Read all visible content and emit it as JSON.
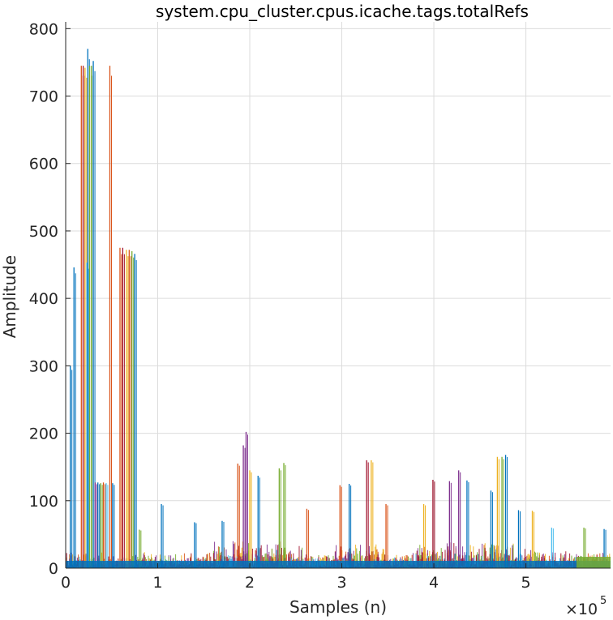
{
  "chart_data": {
    "type": "line",
    "title": "system.cpu_cluster.cpus.icache.tags.totalRefs",
    "xlabel": "Samples (n)",
    "ylabel": "Amplitude",
    "x_exponent_base": "×10",
    "x_exponent_power": "5",
    "xlim": [
      0,
      592000
    ],
    "ylim": [
      0,
      810
    ],
    "x_ticks": [
      0,
      100000,
      200000,
      300000,
      400000,
      500000
    ],
    "x_tick_labels": [
      "0",
      "1",
      "2",
      "3",
      "4",
      "5"
    ],
    "y_ticks": [
      0,
      100,
      200,
      300,
      400,
      500,
      600,
      700,
      800
    ],
    "y_tick_labels": [
      "0",
      "100",
      "200",
      "300",
      "400",
      "500",
      "600",
      "700",
      "800"
    ],
    "grid": true,
    "colors": {
      "blue": "#0072BD",
      "orange": "#D95319",
      "yellow": "#EDB120",
      "purple": "#7E2F8E",
      "green": "#77AC30",
      "cyan": "#4DBEEE",
      "red": "#A2142F"
    },
    "spikes": [
      {
        "x": 5000,
        "y": 300,
        "color": "blue"
      },
      {
        "x": 9000,
        "y": 446,
        "color": "blue"
      },
      {
        "x": 17000,
        "y": 745,
        "color": "orange"
      },
      {
        "x": 19000,
        "y": 745,
        "color": "red"
      },
      {
        "x": 21000,
        "y": 742,
        "color": "yellow"
      },
      {
        "x": 23000,
        "y": 453,
        "color": "cyan"
      },
      {
        "x": 24000,
        "y": 770,
        "color": "blue"
      },
      {
        "x": 26000,
        "y": 745,
        "color": "green"
      },
      {
        "x": 28000,
        "y": 745,
        "color": "green"
      },
      {
        "x": 30000,
        "y": 752,
        "color": "blue"
      },
      {
        "x": 32000,
        "y": 127,
        "color": "purple"
      },
      {
        "x": 35000,
        "y": 127,
        "color": "blue"
      },
      {
        "x": 38000,
        "y": 126,
        "color": "green"
      },
      {
        "x": 41000,
        "y": 127,
        "color": "orange"
      },
      {
        "x": 44000,
        "y": 126,
        "color": "cyan"
      },
      {
        "x": 48000,
        "y": 745,
        "color": "orange"
      },
      {
        "x": 51000,
        "y": 126,
        "color": "blue"
      },
      {
        "x": 59000,
        "y": 475,
        "color": "orange"
      },
      {
        "x": 62000,
        "y": 475,
        "color": "red"
      },
      {
        "x": 66000,
        "y": 472,
        "color": "yellow"
      },
      {
        "x": 69000,
        "y": 472,
        "color": "orange"
      },
      {
        "x": 72000,
        "y": 470,
        "color": "green"
      },
      {
        "x": 75000,
        "y": 466,
        "color": "blue"
      },
      {
        "x": 80000,
        "y": 57,
        "color": "green"
      },
      {
        "x": 104000,
        "y": 95,
        "color": "blue"
      },
      {
        "x": 140000,
        "y": 68,
        "color": "blue"
      },
      {
        "x": 170000,
        "y": 70,
        "color": "blue"
      },
      {
        "x": 187000,
        "y": 155,
        "color": "orange"
      },
      {
        "x": 193000,
        "y": 182,
        "color": "purple"
      },
      {
        "x": 196000,
        "y": 202,
        "color": "purple"
      },
      {
        "x": 200000,
        "y": 145,
        "color": "yellow"
      },
      {
        "x": 209000,
        "y": 137,
        "color": "blue"
      },
      {
        "x": 232000,
        "y": 148,
        "color": "green"
      },
      {
        "x": 237000,
        "y": 156,
        "color": "green"
      },
      {
        "x": 262000,
        "y": 88,
        "color": "orange"
      },
      {
        "x": 298000,
        "y": 123,
        "color": "orange"
      },
      {
        "x": 308000,
        "y": 125,
        "color": "blue"
      },
      {
        "x": 327000,
        "y": 160,
        "color": "red"
      },
      {
        "x": 332000,
        "y": 160,
        "color": "yellow"
      },
      {
        "x": 348000,
        "y": 95,
        "color": "orange"
      },
      {
        "x": 389000,
        "y": 95,
        "color": "yellow"
      },
      {
        "x": 399000,
        "y": 131,
        "color": "red"
      },
      {
        "x": 417000,
        "y": 129,
        "color": "purple"
      },
      {
        "x": 427000,
        "y": 145,
        "color": "purple"
      },
      {
        "x": 436000,
        "y": 130,
        "color": "blue"
      },
      {
        "x": 462000,
        "y": 115,
        "color": "blue"
      },
      {
        "x": 469000,
        "y": 165,
        "color": "yellow"
      },
      {
        "x": 474000,
        "y": 165,
        "color": "green"
      },
      {
        "x": 478000,
        "y": 168,
        "color": "blue"
      },
      {
        "x": 492000,
        "y": 86,
        "color": "blue"
      },
      {
        "x": 507000,
        "y": 85,
        "color": "yellow"
      },
      {
        "x": 528000,
        "y": 60,
        "color": "cyan"
      },
      {
        "x": 563000,
        "y": 60,
        "color": "green"
      },
      {
        "x": 585000,
        "y": 58,
        "color": "blue"
      }
    ]
  }
}
